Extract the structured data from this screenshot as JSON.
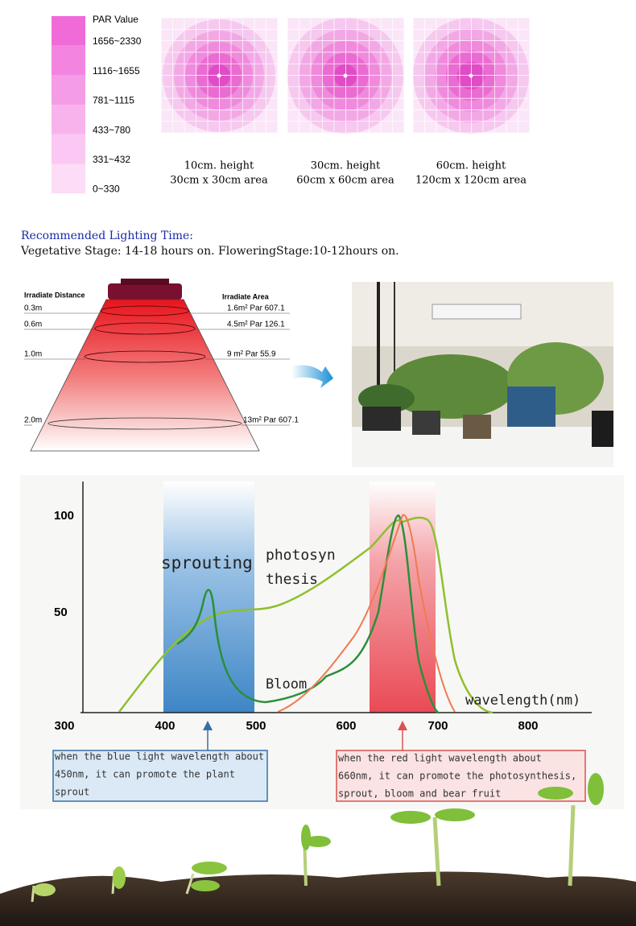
{
  "par_legend": {
    "title": "PAR Value",
    "ranges": [
      "1656~2330",
      "1116~1655",
      "781~1115",
      "433~780",
      "331~432",
      "0~330"
    ]
  },
  "footprints": [
    {
      "height": "10cm. height",
      "area": "30cm x 30cm area"
    },
    {
      "height": "30cm. height",
      "area": "60cm x 60cm area"
    },
    {
      "height": "60cm. height",
      "area": "120cm x 120cm area"
    }
  ],
  "lighting": {
    "title": "Recommended Lighting Time:",
    "text": "Vegetative Stage: 14-18 hours on. FloweringStage:10-12hours on."
  },
  "irradiance": {
    "distance_label": "Irradiate Distance",
    "area_label": "Irradiate Area",
    "rows": [
      {
        "distance": "0.3m",
        "area": "1.6m² Par 607.1"
      },
      {
        "distance": "0.6m",
        "area": "4.5m² Par 126.1"
      },
      {
        "distance": "1.0m",
        "area": "9 m² Par 55.9"
      },
      {
        "distance": "2.0m",
        "area": "13m² Par 607.1"
      }
    ]
  },
  "spectrum": {
    "y_labels": [
      "100",
      "50"
    ],
    "x_labels": [
      "300",
      "400",
      "500",
      "600",
      "700",
      "800"
    ],
    "sprouting": "sprouting",
    "photosynthesis": [
      "photosyn",
      "thesis"
    ],
    "bloom": "Bloom",
    "axis_title": "wavelength(nm)",
    "blue_note": [
      "when the blue light wavelength about",
      "450nm, it can promote the plant",
      "sprout"
    ],
    "red_note": [
      "when the red light wavelength about",
      "660nm, it can promote the photosynthesis,",
      "sprout, bloom and bear fruit"
    ]
  }
}
